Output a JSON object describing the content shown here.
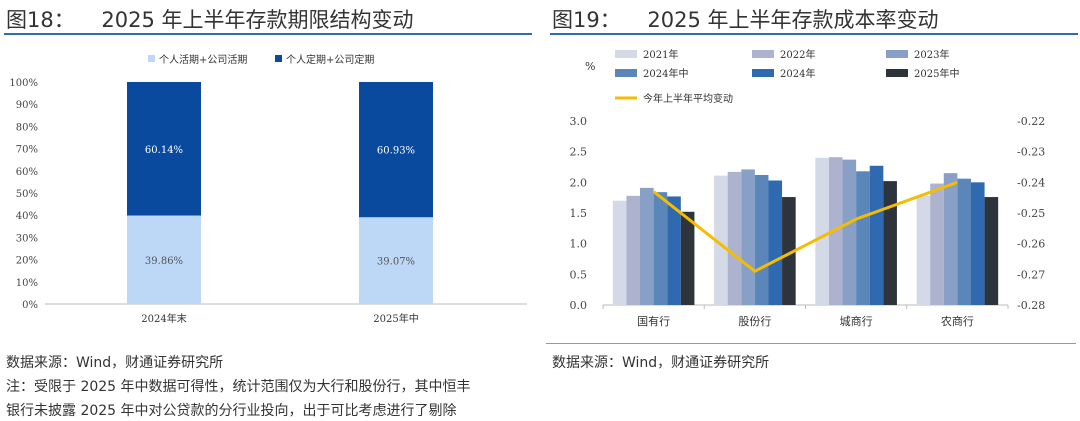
{
  "left": {
    "title": "图18：    2025 年上半年存款期限结构变动",
    "source": "数据来源：Wind，财通证券研究所",
    "note1": "注：受限于 2025 年中数据可得性，统计范围仅为大行和股份行，其中恒丰",
    "note2": "银行未披露 2025 年中对公贷款的分行业投向，出于可比考虑进行了剔除"
  },
  "right": {
    "title": "图19：    2025 年上半年存款成本率变动",
    "source": "数据来源：Wind，财通证券研究所"
  },
  "chart_data": [
    {
      "type": "bar",
      "stacked": true,
      "categories": [
        "2024年末",
        "2025年中"
      ],
      "series": [
        {
          "name": "个人活期+公司活期",
          "values": [
            39.86,
            39.07
          ],
          "labels": [
            "39.86%",
            "39.07%"
          ],
          "color": "#bdd7f7"
        },
        {
          "name": "个人定期+公司定期",
          "values": [
            60.14,
            60.93
          ],
          "labels": [
            "60.14%",
            "60.93%"
          ],
          "color": "#0a4a9e"
        }
      ],
      "yticks": [
        "0%",
        "10%",
        "20%",
        "30%",
        "40%",
        "50%",
        "60%",
        "70%",
        "80%",
        "90%",
        "100%"
      ],
      "ylim": [
        0,
        100
      ],
      "legend": "top"
    },
    {
      "type": "bar",
      "categories": [
        "国有行",
        "股份行",
        "城商行",
        "农商行"
      ],
      "ylabel": "%",
      "ylim": [
        0,
        3.0
      ],
      "yticks": [
        "0.0",
        "0.5",
        "1.0",
        "1.5",
        "2.0",
        "2.5",
        "3.0"
      ],
      "y2ticks": [
        "-0.28",
        "-0.27",
        "-0.26",
        "-0.25",
        "-0.24",
        "-0.23",
        "-0.22"
      ],
      "y2lim": [
        -0.28,
        -0.22
      ],
      "series": [
        {
          "name": "2021年",
          "values": [
            1.7,
            2.11,
            2.4,
            1.78
          ],
          "color": "#d3d9e6"
        },
        {
          "name": "2022年",
          "values": [
            1.78,
            2.17,
            2.41,
            1.98
          ],
          "color": "#adb3cf"
        },
        {
          "name": "2023年",
          "values": [
            1.91,
            2.21,
            2.37,
            2.15
          ],
          "color": "#889fc6"
        },
        {
          "name": "2024年中",
          "values": [
            1.84,
            2.12,
            2.18,
            2.06
          ],
          "color": "#5b86ba"
        },
        {
          "name": "2024年",
          "values": [
            1.77,
            2.03,
            2.27,
            2.0
          ],
          "color": "#2f6ab0"
        },
        {
          "name": "2025年中",
          "values": [
            1.52,
            1.76,
            2.02,
            1.76
          ],
          "color": "#2e343b"
        }
      ],
      "line": {
        "name": "今年上半年平均变动",
        "axis": "right",
        "values": [
          -0.243,
          -0.269,
          -0.252,
          -0.24
        ],
        "color": "#f5bd00"
      },
      "legend": "top"
    }
  ]
}
